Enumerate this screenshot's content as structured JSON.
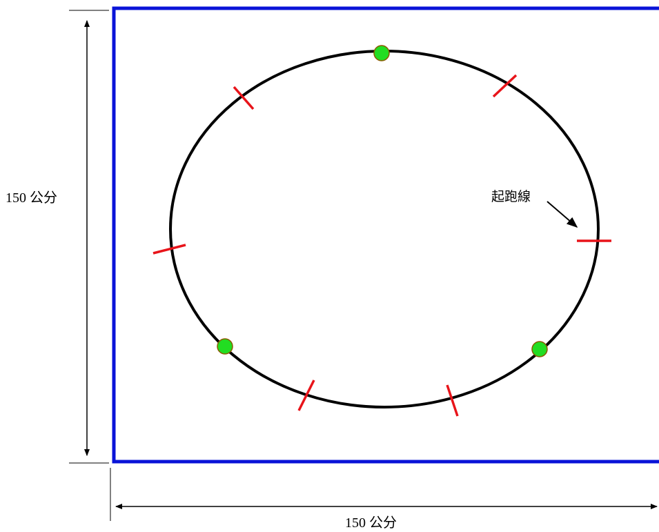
{
  "dimensions": {
    "height_label": "150 公分",
    "width_label": "150 公分"
  },
  "track": {
    "start_line_label": "起跑線"
  },
  "colors": {
    "field_border": "#0a14d8",
    "track": "#000000",
    "start_marks": "#e8141a",
    "markers_fill": "#22dd22",
    "markers_stroke": "#8a5a00"
  }
}
